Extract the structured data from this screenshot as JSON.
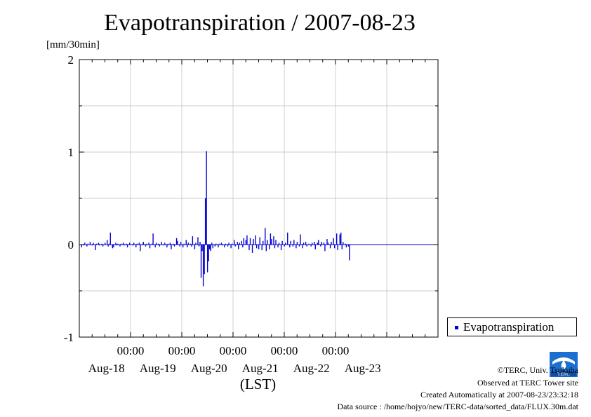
{
  "chart_data": {
    "type": "bar",
    "title": "Evapotranspiration / 2007-08-23",
    "unit_label": "[mm/30min]",
    "xlabel": "(LST)",
    "ylabel": "",
    "ylim": [
      -1,
      2
    ],
    "yticks": [
      -1,
      0,
      1,
      2
    ],
    "xlim_days": [
      "Aug-17 00:00",
      "Aug-23 24:00"
    ],
    "x_time_ticks": [
      "00:00",
      "00:00",
      "00:00",
      "00:00",
      "00:00"
    ],
    "x_date_ticks": [
      "Aug-18",
      "Aug-19",
      "Aug-20",
      "Aug-21",
      "Aug-22",
      "Aug-23"
    ],
    "grid": true,
    "legend_position": "bottom-right",
    "series": [
      {
        "name": "Evapotranspiration",
        "color": "#0000cc",
        "x_start": "Aug-17 00:00",
        "step": "30min",
        "values": [
          0.0,
          -0.03,
          0.0,
          -0.01,
          0.02,
          0.0,
          -0.02,
          0.01,
          0.0,
          0.03,
          0.0,
          -0.01,
          0.02,
          0.0,
          -0.06,
          0.01,
          0.0,
          0.02,
          -0.01,
          0.0,
          0.01,
          -0.02,
          0.0,
          0.02,
          0.0,
          0.05,
          -0.02,
          0.01,
          0.13,
          0.0,
          -0.04,
          -0.03,
          0.0,
          0.02,
          -0.01,
          0.01,
          0.0,
          -0.02,
          0.01,
          0.0,
          0.02,
          -0.01,
          0.0,
          0.01,
          -0.03,
          0.0,
          0.02,
          0.0,
          0.0,
          -0.01,
          0.02,
          0.0,
          -0.03,
          0.01,
          0.0,
          0.02,
          -0.07,
          0.0,
          0.01,
          0.03,
          0.0,
          -0.02,
          0.01,
          0.0,
          0.02,
          -0.04,
          0.0,
          0.01,
          0.12,
          0.0,
          -0.03,
          0.02,
          0.0,
          0.01,
          -0.02,
          0.0,
          0.03,
          0.0,
          -0.01,
          0.02,
          0.0,
          -0.03,
          0.01,
          0.0,
          0.02,
          -0.05,
          0.0,
          0.01,
          -0.02,
          0.0,
          0.07,
          0.04,
          0.0,
          -0.02,
          0.03,
          0.0,
          -0.03,
          0.01,
          0.0,
          0.05,
          -0.03,
          0.02,
          0.0,
          0.01,
          -0.02,
          0.09,
          0.0,
          -0.05,
          0.02,
          0.0,
          0.08,
          -0.02,
          0.03,
          -0.36,
          -0.07,
          -0.45,
          -0.32,
          0.5,
          1.01,
          -0.3,
          -0.18,
          -0.05,
          -0.07,
          0.02,
          -0.04,
          0.0,
          -0.02,
          0.01,
          0.0,
          -0.03,
          0.01,
          0.0,
          0.02,
          -0.01,
          0.0,
          -0.03,
          0.01,
          0.0,
          -0.02,
          0.02,
          0.0,
          -0.04,
          0.01,
          0.0,
          0.05,
          -0.02,
          0.0,
          0.03,
          -0.05,
          0.02,
          0.0,
          0.04,
          -0.03,
          0.07,
          0.0,
          0.05,
          0.1,
          0.0,
          -0.06,
          0.07,
          0.0,
          -0.09,
          0.06,
          0.0,
          0.1,
          -0.04,
          0.0,
          -0.05,
          0.08,
          0.0,
          -0.06,
          0.04,
          0.0,
          0.18,
          -0.07,
          0.05,
          0.0,
          -0.05,
          0.12,
          0.06,
          0.0,
          0.09,
          -0.04,
          0.05,
          0.0,
          -0.03,
          0.02,
          0.0,
          -0.06,
          0.04,
          0.0,
          -0.02,
          0.02,
          0.0,
          0.13,
          0.0,
          -0.03,
          0.04,
          0.0,
          -0.02,
          0.05,
          0.0,
          -0.04,
          0.03,
          0.0,
          -0.02,
          0.11,
          0.0,
          -0.04,
          0.02,
          0.0,
          0.03,
          -0.02,
          0.0,
          0.01,
          0.0,
          -0.02,
          0.02,
          0.0,
          0.03,
          -0.05,
          0.0,
          0.02,
          0.05,
          0.0,
          -0.02,
          0.03,
          0.0,
          0.02,
          -0.07,
          0.0,
          0.06,
          0.02,
          0.0,
          -0.04,
          0.03,
          0.0,
          0.07,
          -0.04,
          0.0,
          0.12,
          -0.06,
          0.0,
          0.11,
          0.13,
          -0.05,
          0.03,
          0.0,
          0.01,
          -0.03,
          0.0,
          -0.02,
          -0.17,
          0.0
        ]
      }
    ]
  },
  "legend": {
    "label": "Evapotranspiration"
  },
  "logo": {
    "text": "TERC"
  },
  "credits": {
    "line1": "©TERC, Univ. Tsukuba",
    "line2": "Observed at TERC Tower site",
    "line3": "Created Automatically at 2007-08-23/23:32:18",
    "line4": "Data source : /home/hojyo/new/TERC-data/sorted_data/FLUX.30m.dat"
  }
}
